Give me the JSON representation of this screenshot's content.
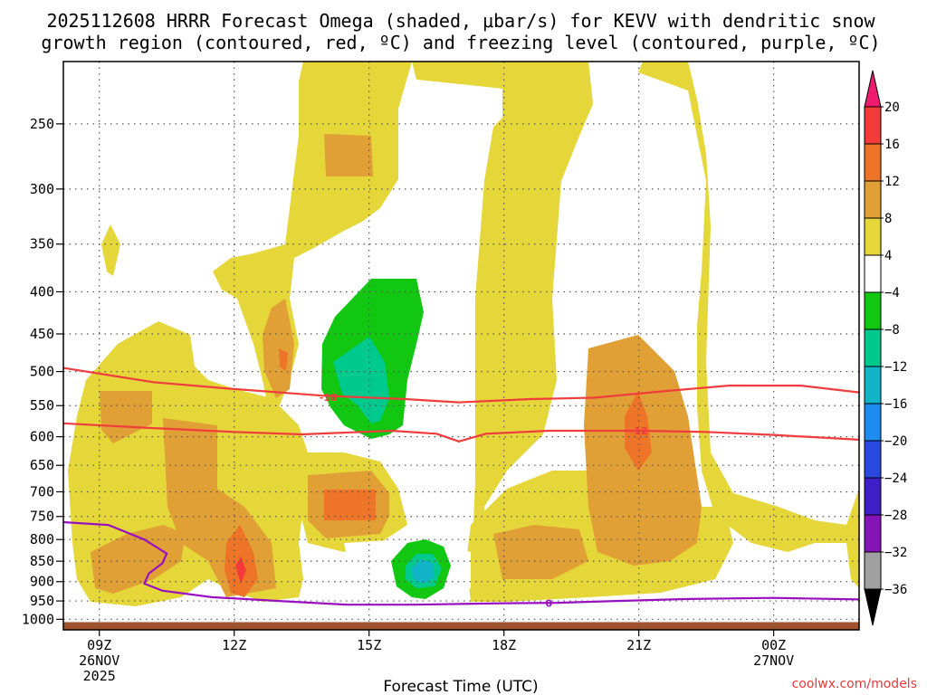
{
  "chart_data": {
    "type": "heatmap",
    "title_line1": "2025112608 HRRR Forecast Omega (shaded, μbar/s) for KEVV with dendritic snow",
    "title_line2": "growth region (contoured, red, ºC) and freezing level (contoured, purple, ºC)",
    "xlabel": "Forecast Time (UTC)",
    "x_ticks": [
      {
        "hour": 9,
        "label": "09Z",
        "date": "26NOV",
        "year": "2025"
      },
      {
        "hour": 12,
        "label": "12Z"
      },
      {
        "hour": 15,
        "label": "15Z"
      },
      {
        "hour": 18,
        "label": "18Z"
      },
      {
        "hour": 21,
        "label": "21Z"
      },
      {
        "hour": 24,
        "label": "00Z",
        "date": "27NOV"
      }
    ],
    "xlim_hours": [
      8.2,
      25.9
    ],
    "y_ticks": [
      "250",
      "300",
      "350",
      "400",
      "450",
      "500",
      "550",
      "600",
      "650",
      "700",
      "750",
      "800",
      "850",
      "900",
      "950",
      "1000"
    ],
    "y_axis": "pressure (hPa), log scale",
    "ylim_hpa": [
      210,
      1030
    ],
    "colorbar": {
      "labels": [
        "20",
        "16",
        "12",
        "8",
        "4",
        "−4",
        "−8",
        "−12",
        "−16",
        "−20",
        "−24",
        "−28",
        "−32",
        "−36"
      ],
      "colors": [
        "#ee1b6e",
        "#f53a3a",
        "#ee7427",
        "#e0a035",
        "#e5d63a",
        "#ffffff",
        "#12c712",
        "#00c98e",
        "#12b4c8",
        "#1e8bf0",
        "#2948e0",
        "#3d1fc8",
        "#8214b8",
        "#a0a0a0",
        "#000000"
      ]
    },
    "omega_regions": [
      {
        "label": "rising motion (omega 4 to 8)",
        "min": 4,
        "max": 8
      },
      {
        "label": "omega 8 to 12",
        "min": 8,
        "max": 12
      },
      {
        "label": "omega -8 to -4",
        "min": -8,
        "max": -4
      },
      {
        "label": "omega -12 to -8",
        "min": -12,
        "max": -8
      }
    ],
    "contours": [
      {
        "name": "minus-18C isotherm",
        "label": "-18",
        "color": "#f03c3c",
        "points": [
          [
            8.2,
            495
          ],
          [
            10.2,
            515
          ],
          [
            12.0,
            525
          ],
          [
            14.0,
            535
          ],
          [
            15.8,
            540
          ],
          [
            17.0,
            545
          ],
          [
            18.6,
            540
          ],
          [
            20.0,
            538
          ],
          [
            21.6,
            528
          ],
          [
            23.0,
            520
          ],
          [
            24.6,
            520
          ],
          [
            25.9,
            530
          ]
        ]
      },
      {
        "name": "minus-12C isotherm",
        "label": "-12",
        "color": "#f03c3c",
        "points": [
          [
            8.2,
            578
          ],
          [
            10.0,
            585
          ],
          [
            12.0,
            592
          ],
          [
            13.5,
            596
          ],
          [
            15.5,
            590
          ],
          [
            16.5,
            595
          ],
          [
            17.0,
            608
          ],
          [
            17.6,
            595
          ],
          [
            19.0,
            590
          ],
          [
            21.0,
            590
          ],
          [
            22.5,
            592
          ],
          [
            24.0,
            597
          ],
          [
            25.9,
            605
          ]
        ]
      },
      {
        "name": "freezing level 0C",
        "label": "0",
        "color": "#9a10c0",
        "points": [
          [
            8.2,
            762
          ],
          [
            9.2,
            768
          ],
          [
            10.0,
            800
          ],
          [
            10.5,
            832
          ],
          [
            10.4,
            855
          ],
          [
            10.1,
            880
          ],
          [
            10.0,
            905
          ],
          [
            10.4,
            923
          ],
          [
            11.5,
            940
          ],
          [
            13.0,
            950
          ],
          [
            14.5,
            960
          ],
          [
            16.0,
            960
          ],
          [
            18.0,
            956
          ],
          [
            19.2,
            955
          ],
          [
            20.5,
            950
          ],
          [
            22.0,
            945
          ],
          [
            24.0,
            942
          ],
          [
            25.9,
            946
          ]
        ]
      }
    ],
    "ground_pressure_hpa": 1008
  },
  "credit": "coolwx.com/models"
}
